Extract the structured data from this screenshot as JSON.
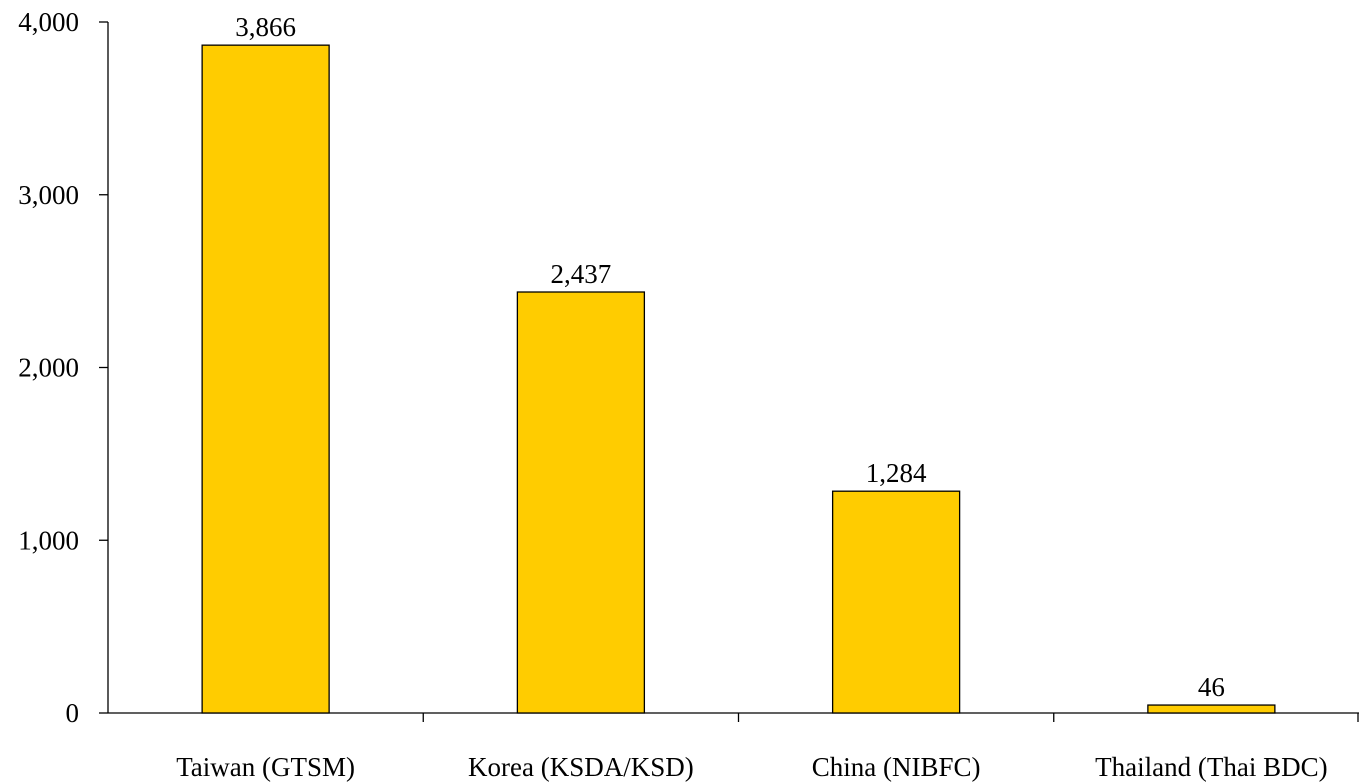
{
  "chart_data": {
    "type": "bar",
    "title": "",
    "xlabel": "",
    "ylabel": "",
    "categories": [
      "Taiwan (GTSM)",
      "Korea (KSDA/KSD)",
      "China (NIBFC)",
      "Thailand (Thai BDC)"
    ],
    "values": [
      3866,
      2437,
      1284,
      46
    ],
    "value_labels": [
      "3,866",
      "2,437",
      "1,284",
      "46"
    ],
    "yticks": [
      0,
      1000,
      2000,
      3000,
      4000
    ],
    "ytick_labels": [
      "0",
      "1,000",
      "2,000",
      "3,000",
      "4,000"
    ],
    "ylim": [
      0,
      4000
    ],
    "grid": false,
    "legend": "none",
    "bar_color": "#FFCC00"
  }
}
